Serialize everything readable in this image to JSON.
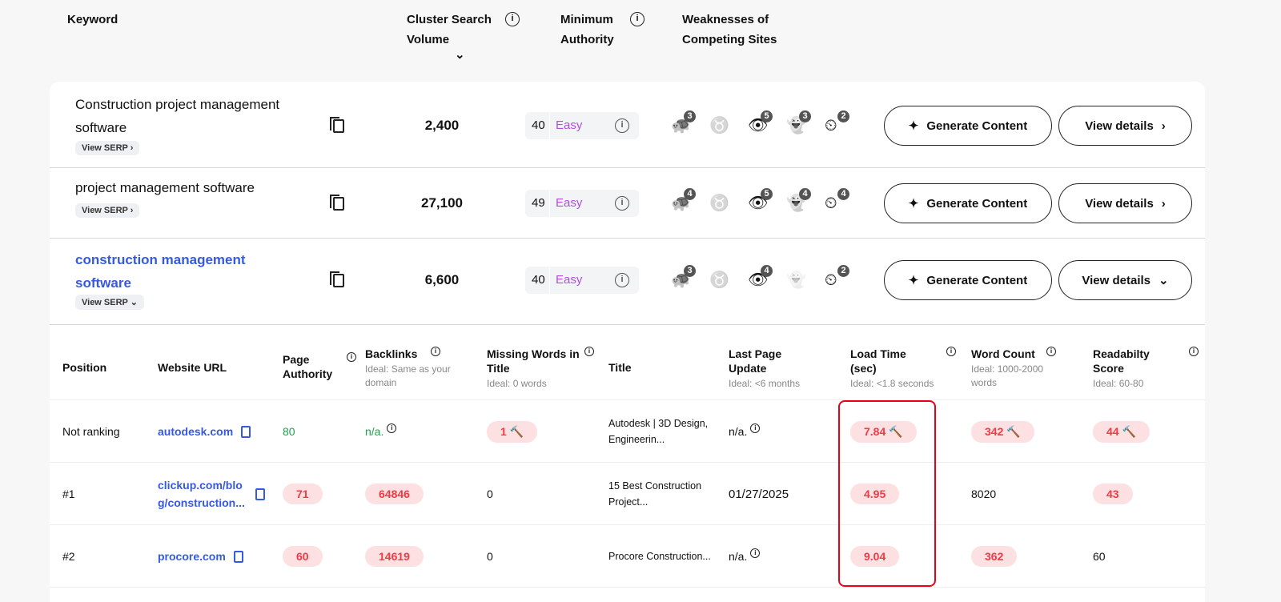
{
  "header": {
    "keyword": "Keyword",
    "volume": "Cluster Search Volume",
    "volume_sort": "⌄",
    "authority": "Minimum Authority",
    "weakness": "Weaknesses of Competing Sites"
  },
  "rows": [
    {
      "keyword": "Construction project management software",
      "serp": "View SERP ›",
      "volume": "2,400",
      "auth": "40",
      "level": "Easy",
      "badges": [
        "3",
        "",
        "5",
        "3",
        "2"
      ],
      "ghost_dim": false,
      "generate": "Generate Content",
      "details": "View details",
      "details_icon": "›"
    },
    {
      "keyword": "project management software",
      "serp": "View SERP ›",
      "volume": "27,100",
      "auth": "49",
      "level": "Easy",
      "badges": [
        "4",
        "",
        "5",
        "4",
        "4"
      ],
      "ghost_dim": false,
      "generate": "Generate Content",
      "details": "View details",
      "details_icon": "›"
    },
    {
      "keyword": "construction management software",
      "serp": "View SERP ⌄",
      "volume": "6,600",
      "auth": "40",
      "level": "Easy",
      "badges": [
        "3",
        "",
        "4",
        "",
        "2"
      ],
      "ghost_dim": true,
      "generate": "Generate Content",
      "details": "View details",
      "details_icon": "⌄"
    }
  ],
  "serp_table": {
    "columns": [
      {
        "label": "Position",
        "ideal": ""
      },
      {
        "label": "Website URL",
        "ideal": ""
      },
      {
        "label": "Page Authority",
        "ideal": ""
      },
      {
        "label": "Backlinks",
        "ideal": "Ideal: Same as your domain"
      },
      {
        "label": "Missing Words in Title",
        "ideal": "Ideal: 0 words"
      },
      {
        "label": "Title",
        "ideal": ""
      },
      {
        "label": "Last Page Update",
        "ideal": "Ideal: <6 months"
      },
      {
        "label": "Load Time (sec)",
        "ideal": "Ideal: <1.8 seconds"
      },
      {
        "label": "Word Count",
        "ideal": "Ideal: 1000-2000 words"
      },
      {
        "label": "Readabilty Score",
        "ideal": "Ideal: 60-80"
      }
    ],
    "rows": [
      {
        "position": "Not ranking",
        "url": "autodesk.com",
        "pa": "80",
        "backlinks": "n/a.",
        "missing": "1",
        "title": "Autodesk | 3D Design, Engineerin...",
        "updated": "n/a.",
        "load": "7.84",
        "words": "342",
        "read": "44"
      },
      {
        "position": "#1",
        "url": "clickup.com/blog/construction...",
        "pa": "71",
        "backlinks": "64846",
        "missing": "0",
        "title": "15 Best Construction Project...",
        "updated": "01/27/2025",
        "load": "4.95",
        "words": "8020",
        "read": "43"
      },
      {
        "position": "#2",
        "url": "procore.com",
        "pa": "60",
        "backlinks": "14619",
        "missing": "0",
        "title": "Procore Construction...",
        "updated": "n/a.",
        "load": "9.04",
        "words": "362",
        "read": "60"
      }
    ]
  },
  "colors": {
    "accent": "#3659e3",
    "bad": "#ee3b45",
    "badbg": "#fde0e2",
    "easy": "#b14de6",
    "good": "#1aa34a"
  }
}
